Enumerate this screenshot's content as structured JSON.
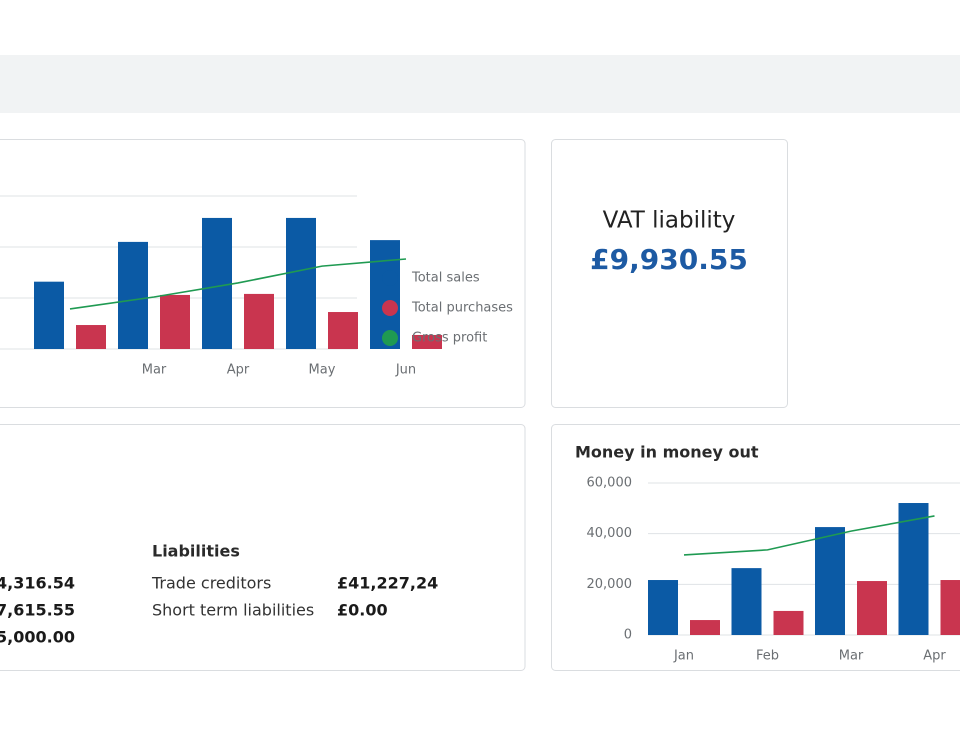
{
  "chart_data": [
    {
      "type": "bar",
      "categories": [
        null,
        "Mar",
        "Apr",
        "May",
        "Jun"
      ],
      "series": [
        {
          "name": "Total sales",
          "color": "#0b5aa5",
          "values": [
            26400,
            42000,
            51400,
            51400,
            42700
          ]
        },
        {
          "name": "Total purchases",
          "color": "#c9354f",
          "values": [
            9400,
            21200,
            21600,
            14500,
            5500
          ]
        },
        {
          "name": "Gross profit",
          "color": "#1f9a52",
          "type": "line",
          "values": [
            15700,
            20400,
            25900,
            32500,
            35300
          ]
        }
      ],
      "ylim": [
        0,
        60000
      ],
      "yticks": [
        0,
        20000,
        40000,
        60000
      ],
      "ytick_labels": false,
      "grid": true,
      "legend": "right"
    },
    {
      "type": "bar",
      "title": "Money in money out",
      "categories": [
        "Jan",
        "Feb",
        "Mar",
        "Apr"
      ],
      "series": [
        {
          "color": "#0b5aa5",
          "values": [
            21700,
            26400,
            42600,
            52100
          ]
        },
        {
          "color": "#c9354f",
          "values": [
            5900,
            9500,
            21300,
            21700
          ]
        },
        {
          "color": "#1f9a52",
          "type": "line",
          "values": [
            31600,
            33600,
            41000,
            47000
          ]
        }
      ],
      "ylim": [
        0,
        60000
      ],
      "yticks": [
        0,
        {
          "value": 20000,
          "label": "20,000"
        },
        {
          "value": 40000,
          "label": "40,000"
        },
        {
          "value": 60000,
          "label": "60,000"
        }
      ],
      "ytick_labels": true,
      "grid": true
    }
  ],
  "vat": {
    "title": "VAT liability",
    "amount": "£9,930.55"
  },
  "balance": {
    "assets": [
      "4,316.54",
      "7,615.55",
      "5,000.00"
    ],
    "liabilities_title": "Liabilities",
    "liabilities": [
      [
        "Trade creditors",
        "£41,227,24"
      ],
      [
        "Short term liabilities",
        "£0.00"
      ]
    ]
  }
}
